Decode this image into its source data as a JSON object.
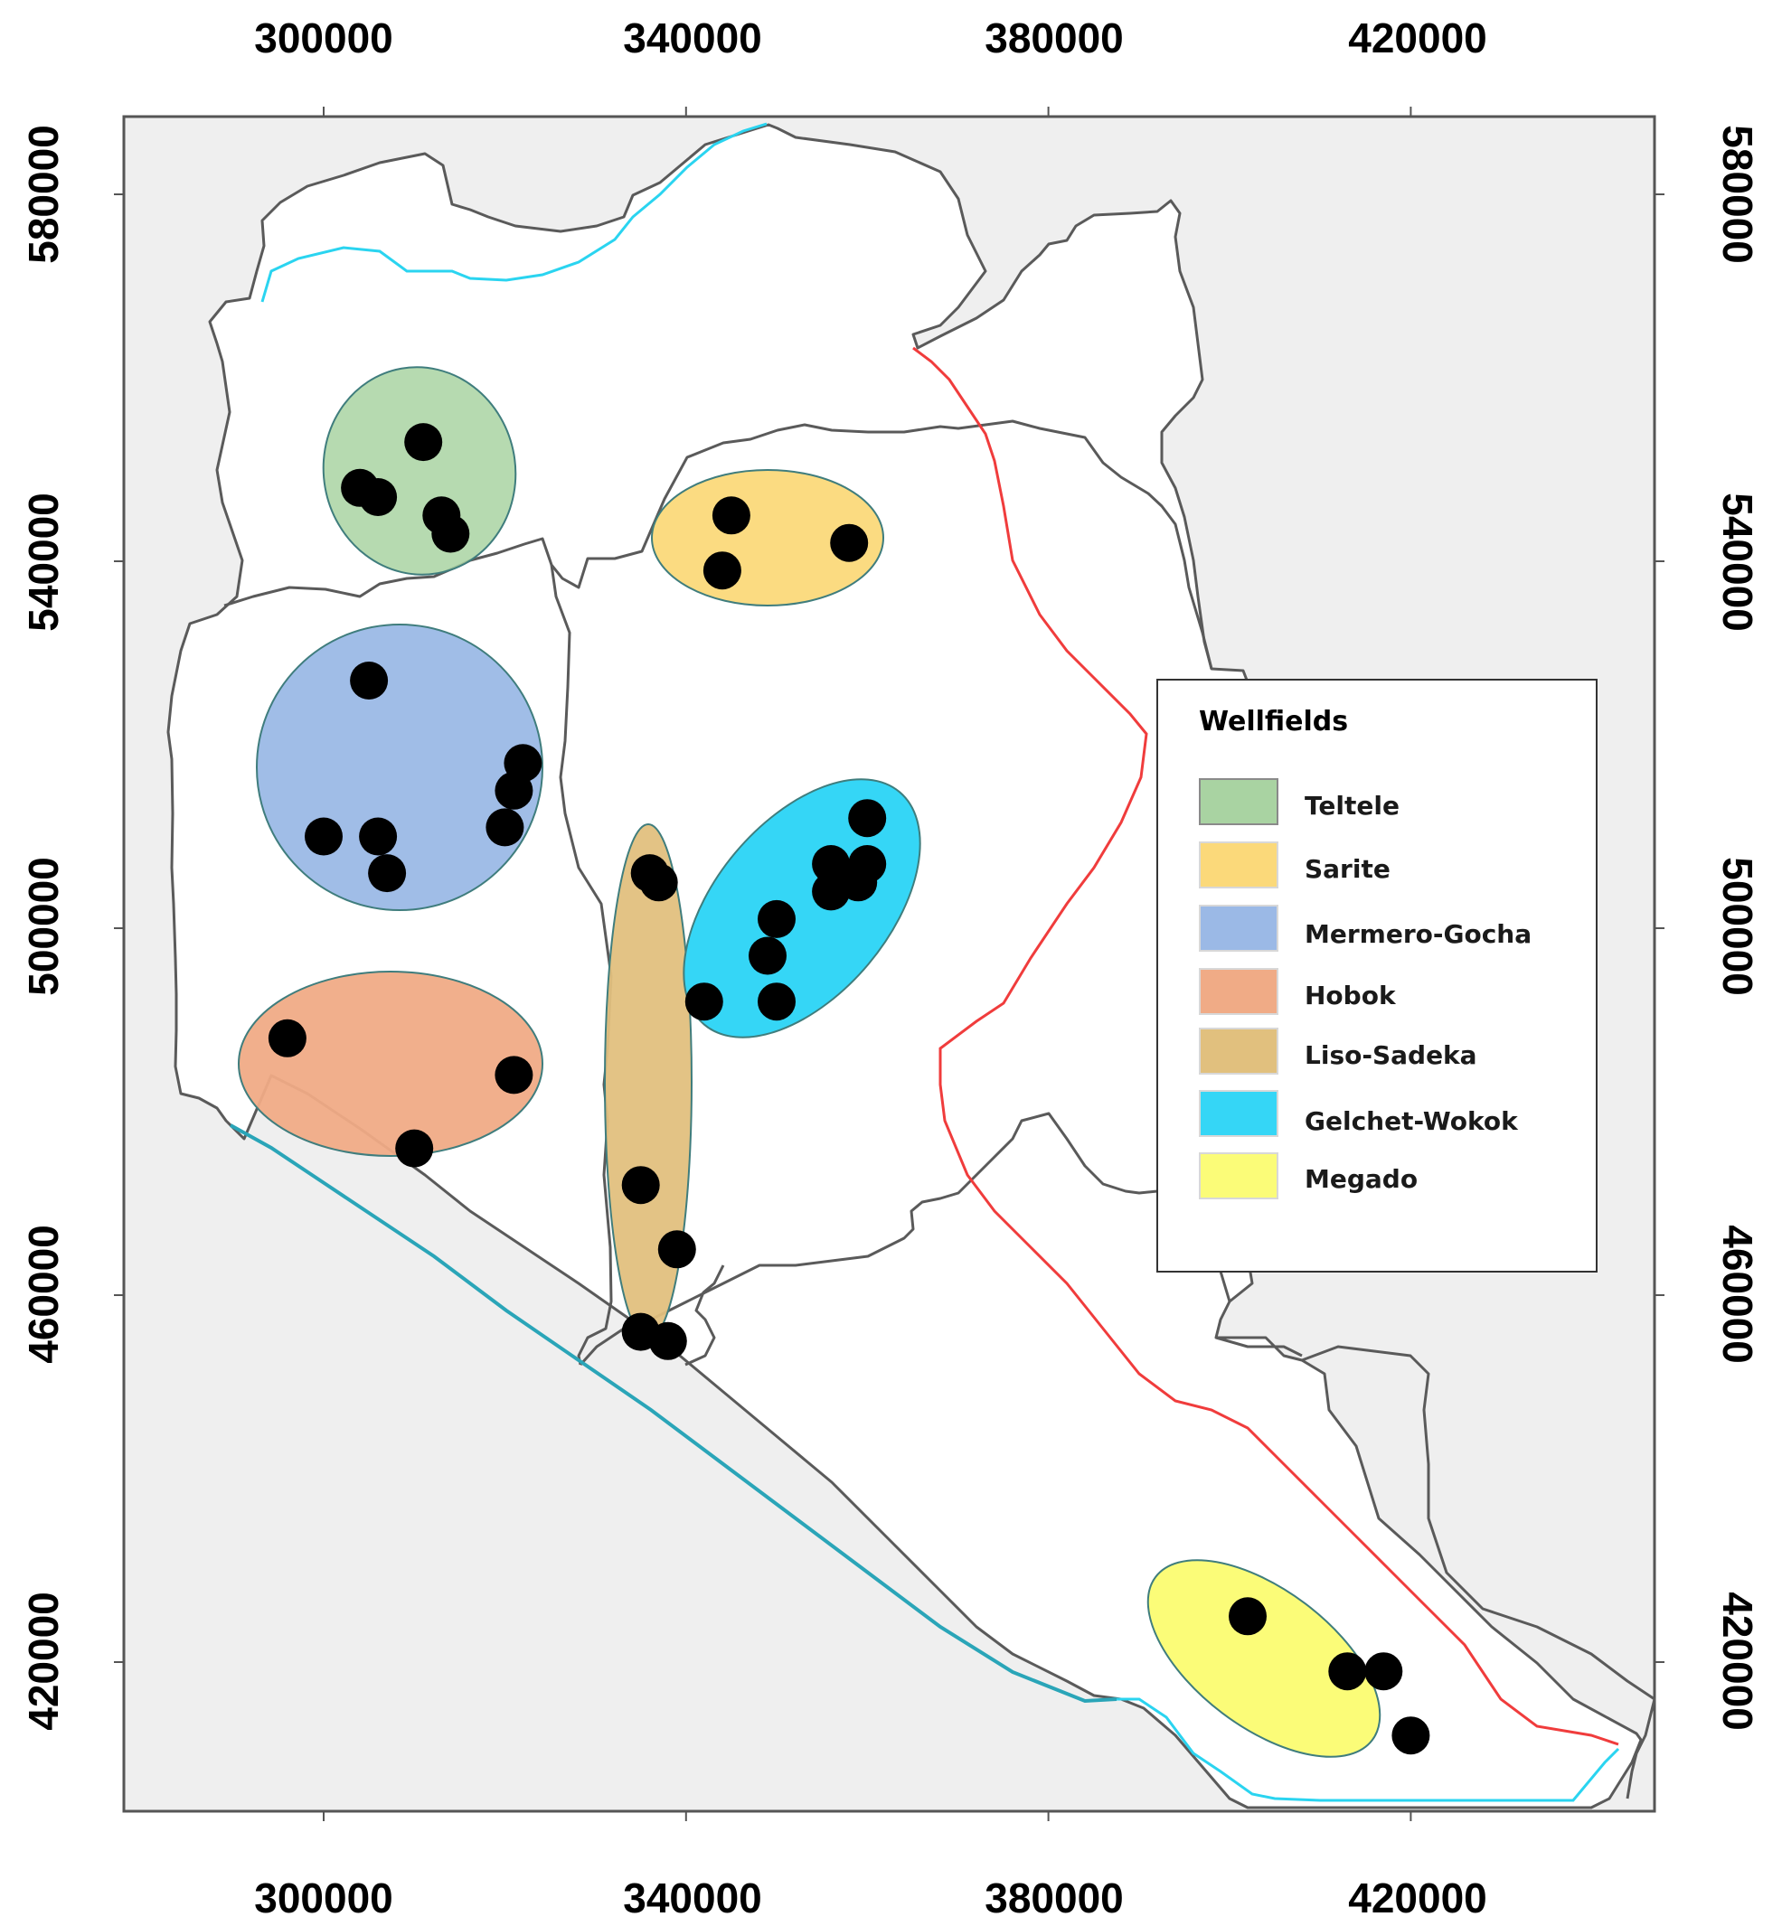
{
  "map": {
    "x_ticks": [
      "300000",
      "340000",
      "380000",
      "420000"
    ],
    "y_ticks": [
      "580000",
      "540000",
      "500000",
      "460000",
      "420000"
    ],
    "legend": {
      "title": "Wellfields",
      "items": [
        {
          "label": "Teltele",
          "color": "#a9d3a2"
        },
        {
          "label": "Sarite",
          "color": "#fbd97a"
        },
        {
          "label": "Mermero-Gocha",
          "color": "#9bb9e6"
        },
        {
          "label": "Hobok",
          "color": "#f0ab86"
        },
        {
          "label": "Liso-Sadeka",
          "color": "#e1c07e"
        },
        {
          "label": "Gelchet-Wokok",
          "color": "#35d6f6"
        },
        {
          "label": "Megado",
          "color": "#fbfc78"
        }
      ]
    },
    "colors": {
      "background": "#efefef",
      "region": "#ffffff",
      "boundary": "#5a5a5a",
      "red_line": "#f03c3c",
      "cyan_line": "#2ad4f0",
      "well": "#000000"
    },
    "wellfields": [
      {
        "name": "Teltele",
        "fill": "#a9d3a2",
        "wells": [
          [
            311,
            553
          ],
          [
            304,
            548
          ],
          [
            306,
            547
          ],
          [
            313,
            545
          ],
          [
            314,
            543
          ]
        ]
      },
      {
        "name": "Sarite",
        "fill": "#fbd97a",
        "wells": [
          [
            345,
            545
          ],
          [
            344,
            539
          ],
          [
            358,
            542
          ]
        ]
      },
      {
        "name": "Mermero-Gocha",
        "fill": "#9bb9e6",
        "wells": [
          [
            305,
            527
          ],
          [
            322,
            518
          ],
          [
            321,
            515
          ],
          [
            300,
            510
          ],
          [
            306,
            510
          ],
          [
            307,
            506
          ],
          [
            320,
            511
          ]
        ]
      },
      {
        "name": "Hobok",
        "fill": "#f0ab86",
        "wells": [
          [
            296,
            488
          ],
          [
            321,
            484
          ],
          [
            310,
            476
          ]
        ]
      },
      {
        "name": "Liso-Sadeka",
        "fill": "#e1c07e",
        "wells": [
          [
            336,
            506
          ],
          [
            337,
            505
          ],
          [
            335,
            472
          ],
          [
            339,
            465
          ],
          [
            335,
            456
          ],
          [
            338,
            455
          ]
        ]
      },
      {
        "name": "Gelchet-Wokok",
        "fill": "#35d6f6",
        "wells": [
          [
            360,
            512
          ],
          [
            356,
            507
          ],
          [
            360,
            507
          ],
          [
            359,
            505
          ],
          [
            356,
            504
          ],
          [
            350,
            501
          ],
          [
            349,
            497
          ],
          [
            350,
            492
          ],
          [
            342,
            492
          ]
        ]
      },
      {
        "name": "Megado",
        "fill": "#fbfc78",
        "wells": [
          [
            402,
            425
          ],
          [
            413,
            419
          ],
          [
            417,
            419
          ],
          [
            420,
            412
          ]
        ]
      }
    ]
  }
}
